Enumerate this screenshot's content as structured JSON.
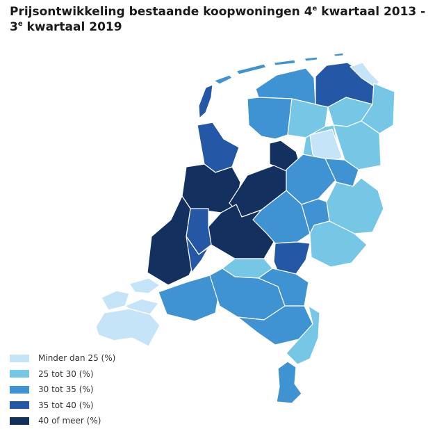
{
  "title": {
    "part1": "Prijsontwikkeling bestaande koopwoningen 4",
    "sup1": "e",
    "part2": " kwartaal 2013 - 3",
    "sup2": "e",
    "part3": " kwartaal 2019"
  },
  "legend": [
    {
      "label": "Minder dan 25 (%)",
      "color": "#c6e4f8"
    },
    {
      "label": "25 tot 30 (%)",
      "color": "#76c6e6"
    },
    {
      "label": "30 tot 35 (%)",
      "color": "#3f93d3"
    },
    {
      "label": "35 tot 40 (%)",
      "color": "#2457a6"
    },
    {
      "label": "40 of meer (%)",
      "color": "#14305e"
    }
  ]
}
